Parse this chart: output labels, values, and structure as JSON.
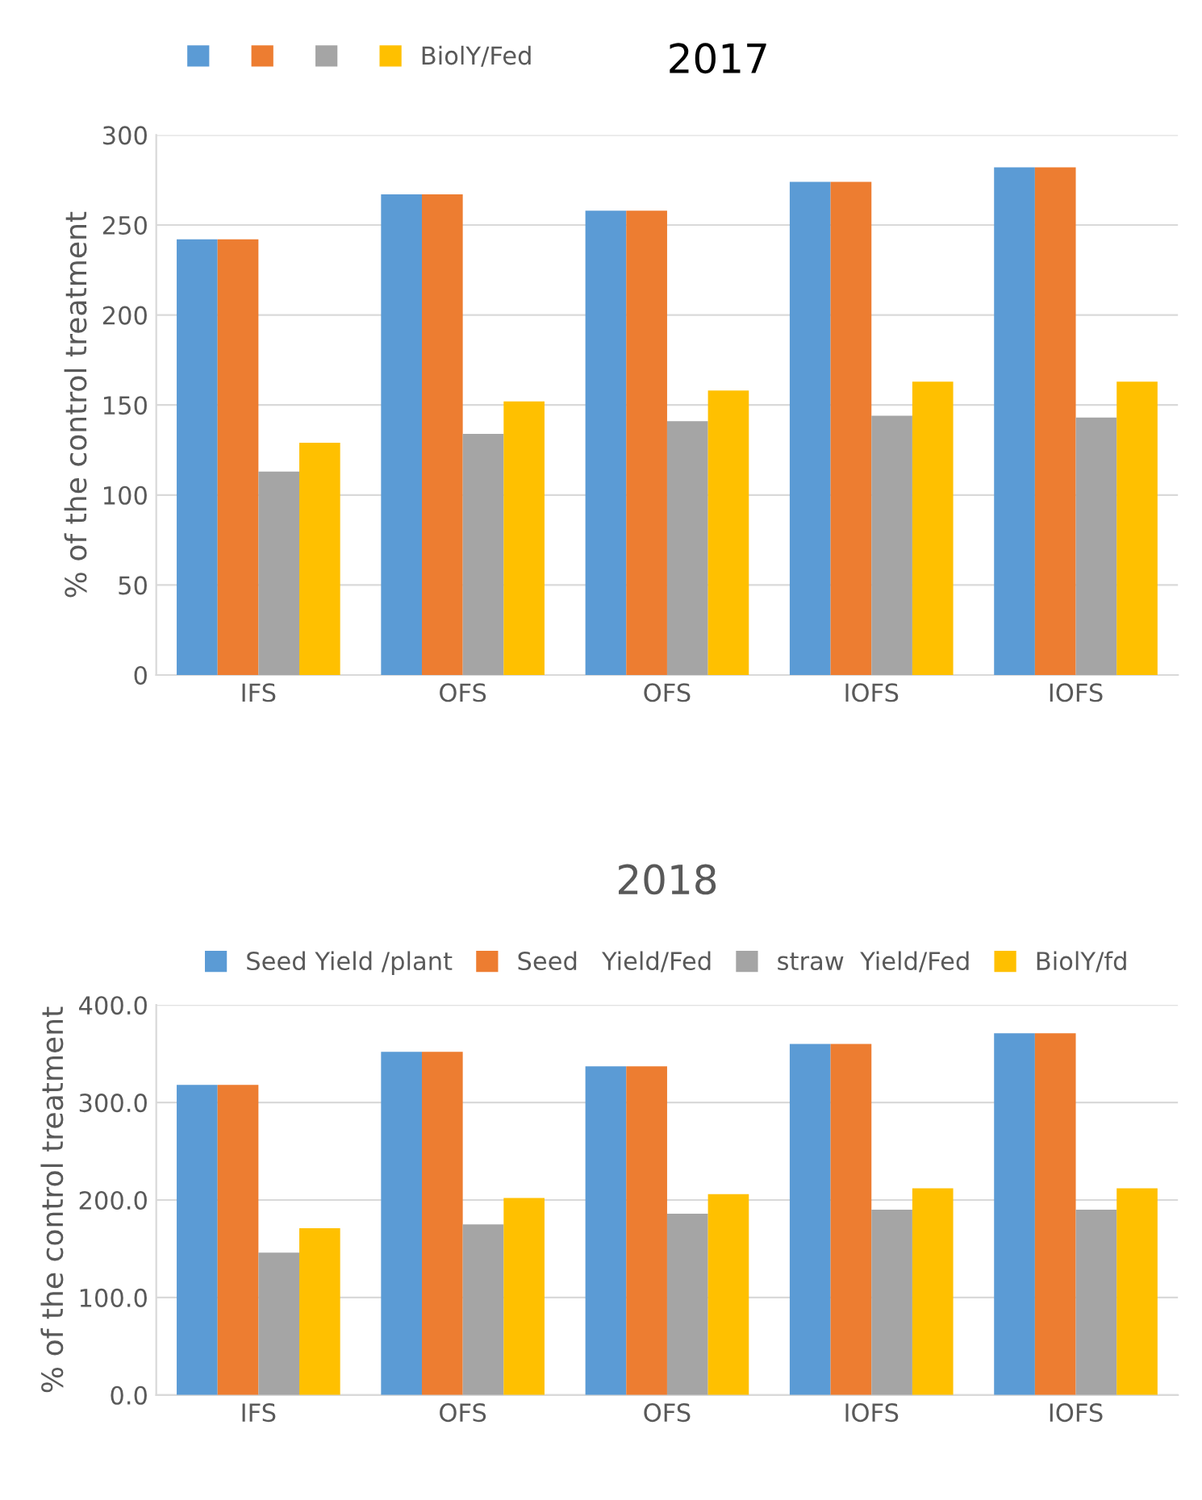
{
  "chart_data": [
    {
      "type": "bar",
      "title": "2017",
      "ylabel": "% of the control treatment",
      "categories": [
        "IFS",
        "OFS",
        "OFS",
        "IOFS",
        "IOFS"
      ],
      "series": [
        {
          "color": "#5b9bd5",
          "values": [
            242,
            267,
            258,
            274,
            282
          ]
        },
        {
          "color": "#ed7d31",
          "values": [
            242,
            267,
            258,
            274,
            282
          ]
        },
        {
          "color": "#a5a5a5",
          "values": [
            113,
            134,
            141,
            144,
            143
          ]
        },
        {
          "name": "BiolY/Fed",
          "color": "#ffc000",
          "values": [
            129,
            152,
            158,
            163,
            163
          ]
        }
      ],
      "ylim": [
        0,
        300
      ],
      "yticks": [
        0,
        50,
        100,
        150,
        200,
        250,
        300
      ],
      "grid": "y",
      "legend": "top"
    },
    {
      "type": "bar",
      "title": "2018",
      "ylabel": "% of the control treatment",
      "categories": [
        "IFS",
        "OFS",
        "OFS",
        "IOFS",
        "IOFS"
      ],
      "series": [
        {
          "name": "Seed Yield /plant",
          "color": "#5b9bd5",
          "values": [
            318,
            352,
            337,
            360,
            371
          ]
        },
        {
          "name": "Seed   Yield/Fed",
          "color": "#ed7d31",
          "values": [
            318,
            352,
            337,
            360,
            371
          ]
        },
        {
          "name": "straw  Yield/Fed",
          "color": "#a5a5a5",
          "values": [
            146,
            175,
            186,
            190,
            190
          ]
        },
        {
          "name": "BiolY/fd",
          "color": "#ffc000",
          "values": [
            171,
            202,
            206,
            212,
            212
          ]
        }
      ],
      "ylim": [
        0,
        400
      ],
      "yticks": [
        {
          "value": 0,
          "label": "0.0"
        },
        {
          "value": 100,
          "label": "100.0"
        },
        {
          "value": 200,
          "label": "200.0"
        },
        {
          "value": 300,
          "label": "300.0"
        },
        {
          "value": 400,
          "label": "400.0"
        }
      ],
      "grid": "y",
      "legend": "top"
    }
  ]
}
